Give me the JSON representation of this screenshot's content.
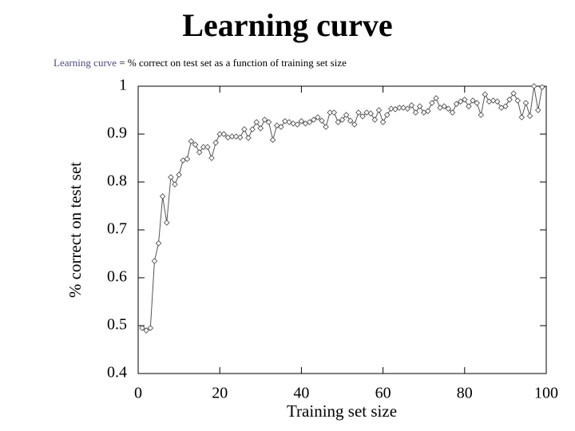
{
  "chart_data": {
    "type": "line",
    "title": "Learning curve",
    "subtitle_term": "Learning curve",
    "subtitle_rest": "= % correct on test set as a function of training set size",
    "xlabel": "Training set size",
    "ylabel": "% correct on test set",
    "x": [
      1,
      2,
      3,
      4,
      5,
      6,
      7,
      8,
      9,
      10,
      11,
      12,
      13,
      14,
      15,
      16,
      17,
      18,
      19,
      20,
      21,
      22,
      23,
      24,
      25,
      26,
      27,
      28,
      29,
      30,
      31,
      32,
      33,
      34,
      35,
      36,
      37,
      38,
      39,
      40,
      41,
      42,
      43,
      44,
      45,
      46,
      47,
      48,
      49,
      50,
      51,
      52,
      53,
      54,
      55,
      56,
      57,
      58,
      59,
      60,
      61,
      62,
      63,
      64,
      65,
      66,
      67,
      68,
      69,
      70,
      71,
      72,
      73,
      74,
      75,
      76,
      77,
      78,
      79,
      80,
      81,
      82,
      83,
      84,
      85,
      86,
      87,
      88,
      89,
      90,
      91,
      92,
      93,
      94,
      95,
      96,
      97,
      98,
      99
    ],
    "series": [
      {
        "color": "#555555",
        "values": [
          0.495,
          0.49,
          0.495,
          0.635,
          0.672,
          0.77,
          0.715,
          0.81,
          0.795,
          0.815,
          0.845,
          0.848,
          0.885,
          0.878,
          0.862,
          0.873,
          0.873,
          0.85,
          0.882,
          0.9,
          0.9,
          0.893,
          0.895,
          0.895,
          0.893,
          0.91,
          0.892,
          0.91,
          0.925,
          0.912,
          0.93,
          0.925,
          0.888,
          0.918,
          0.915,
          0.927,
          0.925,
          0.922,
          0.92,
          0.927,
          0.922,
          0.925,
          0.93,
          0.935,
          0.928,
          0.915,
          0.945,
          0.945,
          0.925,
          0.93,
          0.94,
          0.928,
          0.92,
          0.945,
          0.937,
          0.945,
          0.943,
          0.93,
          0.95,
          0.925,
          0.94,
          0.953,
          0.952,
          0.955,
          0.955,
          0.953,
          0.96,
          0.945,
          0.958,
          0.945,
          0.948,
          0.965,
          0.975,
          0.955,
          0.958,
          0.953,
          0.945,
          0.963,
          0.968,
          0.972,
          0.958,
          0.97,
          0.965,
          0.94,
          0.983,
          0.968,
          0.97,
          0.968,
          0.955,
          0.958,
          0.972,
          0.985,
          0.97,
          0.935,
          0.965,
          0.938,
          1.0,
          0.95,
          0.998
        ]
      }
    ],
    "xlim": [
      0,
      100
    ],
    "xticks": [
      0,
      20,
      40,
      60,
      80,
      100
    ],
    "ylim": [
      0.4,
      1
    ],
    "yticks": [
      0.4,
      0.5,
      0.6,
      0.7,
      0.8,
      0.9,
      1
    ]
  }
}
